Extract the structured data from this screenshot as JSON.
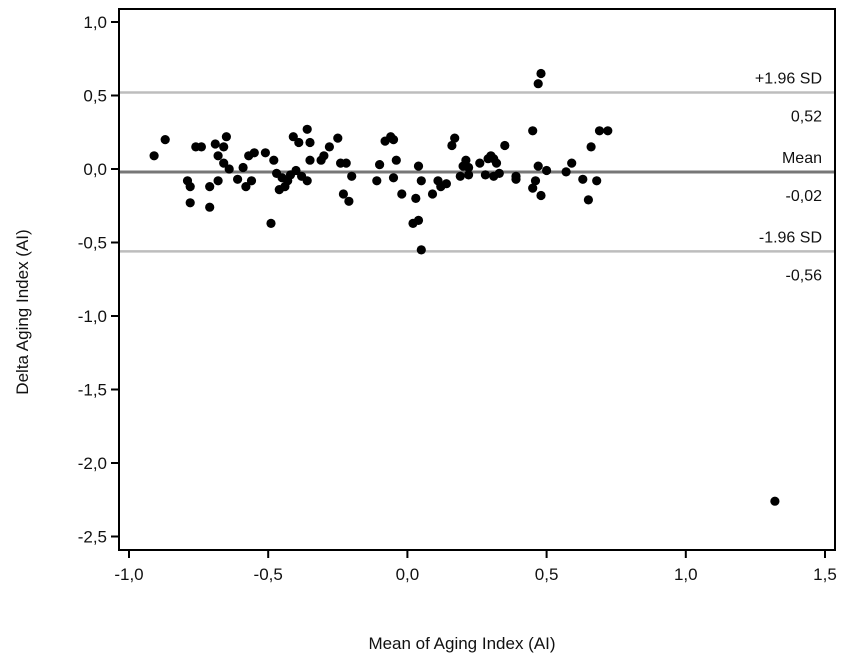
{
  "chart_data": {
    "type": "scatter",
    "xlabel": "Mean of Aging Index (AI)",
    "ylabel": "Delta Aging Index (AI)",
    "xlim": [
      -1.0,
      1.5
    ],
    "ylim": [
      -2.6,
      1.1
    ],
    "x_ticks": [
      -1.0,
      -0.5,
      0.0,
      0.5,
      1.0,
      1.5
    ],
    "x_tick_labels": [
      "-1,0",
      "-0,5",
      "0,0",
      "0,5",
      "1,0",
      "1,5"
    ],
    "y_ticks": [
      1.0,
      0.5,
      0.0,
      -0.5,
      -1.0,
      -1.5,
      -2.0,
      -2.5
    ],
    "y_tick_labels": [
      "1,0",
      "0,5",
      "0,0",
      "-0,5",
      "-1,0",
      "-1,5",
      "-2,0",
      "-2,5"
    ],
    "grid": false,
    "reference_lines": [
      {
        "label": "+1.96 SD",
        "value_label": "0,52",
        "y": 0.52,
        "color": "#bdbdbd"
      },
      {
        "label": "Mean",
        "value_label": "-0,02",
        "y": -0.02,
        "color": "#777777"
      },
      {
        "label": "-1.96 SD",
        "value_label": "-0,56",
        "y": -0.56,
        "color": "#bdbdbd"
      }
    ],
    "point_color": "#000000",
    "points": [
      [
        -0.91,
        0.09
      ],
      [
        -0.87,
        0.2
      ],
      [
        -0.79,
        -0.08
      ],
      [
        -0.78,
        -0.12
      ],
      [
        -0.78,
        -0.23
      ],
      [
        -0.76,
        0.15
      ],
      [
        -0.74,
        0.15
      ],
      [
        -0.71,
        -0.12
      ],
      [
        -0.71,
        -0.26
      ],
      [
        -0.69,
        0.17
      ],
      [
        -0.68,
        0.09
      ],
      [
        -0.68,
        -0.08
      ],
      [
        -0.66,
        0.15
      ],
      [
        -0.66,
        0.04
      ],
      [
        -0.65,
        0.22
      ],
      [
        -0.64,
        0.0
      ],
      [
        -0.61,
        -0.07
      ],
      [
        -0.59,
        0.01
      ],
      [
        -0.58,
        -0.12
      ],
      [
        -0.57,
        0.09
      ],
      [
        -0.56,
        -0.08
      ],
      [
        -0.55,
        0.11
      ],
      [
        -0.51,
        0.11
      ],
      [
        -0.49,
        -0.37
      ],
      [
        -0.48,
        0.06
      ],
      [
        -0.47,
        -0.03
      ],
      [
        -0.46,
        -0.14
      ],
      [
        -0.45,
        -0.06
      ],
      [
        -0.44,
        -0.12
      ],
      [
        -0.43,
        -0.08
      ],
      [
        -0.42,
        -0.04
      ],
      [
        -0.41,
        0.22
      ],
      [
        -0.4,
        -0.01
      ],
      [
        -0.39,
        0.18
      ],
      [
        -0.38,
        -0.05
      ],
      [
        -0.36,
        0.27
      ],
      [
        -0.36,
        -0.08
      ],
      [
        -0.35,
        0.06
      ],
      [
        -0.35,
        0.18
      ],
      [
        -0.31,
        0.06
      ],
      [
        -0.3,
        0.09
      ],
      [
        -0.28,
        0.15
      ],
      [
        -0.25,
        0.21
      ],
      [
        -0.24,
        0.04
      ],
      [
        -0.23,
        -0.17
      ],
      [
        -0.22,
        0.04
      ],
      [
        -0.21,
        -0.22
      ],
      [
        -0.2,
        -0.05
      ],
      [
        -0.11,
        -0.08
      ],
      [
        -0.1,
        0.03
      ],
      [
        -0.08,
        0.19
      ],
      [
        -0.06,
        0.22
      ],
      [
        -0.05,
        -0.06
      ],
      [
        -0.05,
        0.2
      ],
      [
        -0.04,
        0.06
      ],
      [
        -0.02,
        -0.17
      ],
      [
        0.02,
        -0.37
      ],
      [
        0.03,
        -0.2
      ],
      [
        0.04,
        0.02
      ],
      [
        0.04,
        -0.35
      ],
      [
        0.05,
        -0.55
      ],
      [
        0.05,
        -0.08
      ],
      [
        0.09,
        -0.17
      ],
      [
        0.11,
        -0.08
      ],
      [
        0.12,
        -0.12
      ],
      [
        0.14,
        -0.1
      ],
      [
        0.16,
        0.16
      ],
      [
        0.17,
        0.21
      ],
      [
        0.19,
        -0.05
      ],
      [
        0.2,
        0.02
      ],
      [
        0.21,
        0.06
      ],
      [
        0.22,
        -0.04
      ],
      [
        0.22,
        0.01
      ],
      [
        0.26,
        0.04
      ],
      [
        0.28,
        -0.04
      ],
      [
        0.29,
        0.07
      ],
      [
        0.3,
        0.09
      ],
      [
        0.31,
        0.07
      ],
      [
        0.31,
        -0.05
      ],
      [
        0.32,
        0.04
      ],
      [
        0.33,
        -0.03
      ],
      [
        0.35,
        0.16
      ],
      [
        0.39,
        -0.07
      ],
      [
        0.39,
        -0.05
      ],
      [
        0.45,
        -0.13
      ],
      [
        0.45,
        0.26
      ],
      [
        0.46,
        -0.08
      ],
      [
        0.47,
        0.02
      ],
      [
        0.47,
        0.58
      ],
      [
        0.48,
        0.65
      ],
      [
        0.48,
        -0.18
      ],
      [
        0.5,
        -0.01
      ],
      [
        0.57,
        -0.02
      ],
      [
        0.59,
        0.04
      ],
      [
        0.63,
        -0.07
      ],
      [
        0.65,
        -0.21
      ],
      [
        0.66,
        0.15
      ],
      [
        0.68,
        -0.08
      ],
      [
        0.69,
        0.26
      ],
      [
        0.72,
        0.26
      ],
      [
        1.32,
        -2.26
      ]
    ]
  }
}
